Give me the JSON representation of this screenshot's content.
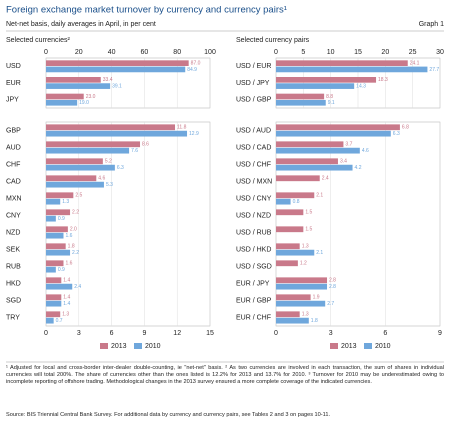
{
  "header": {
    "title": "Foreign exchange market turnover by currency and currency pairs¹",
    "subtitle": "Net-net basis, daily averages in April, in per cent",
    "graph_label": "Graph 1"
  },
  "chart_data": [
    {
      "type": "bar",
      "orientation": "horizontal",
      "title": "Selected currencies²",
      "xaxis": "top",
      "grid": true,
      "categories": [
        "USD",
        "EUR",
        "JPY"
      ],
      "series": [
        {
          "color": "#c9798a",
          "values": [
            87.0,
            33.4,
            23.0
          ],
          "value_labels": [
            "87.0",
            "33.4",
            "23.0"
          ]
        },
        {
          "color": "#6fa7dc",
          "values": [
            84.9,
            39.1,
            19.0
          ],
          "value_labels": [
            "84.9",
            "39.1",
            "19.0"
          ]
        }
      ],
      "xlim": [
        0,
        100
      ],
      "xticks": [
        0,
        20,
        40,
        60,
        80,
        100
      ]
    },
    {
      "type": "bar",
      "orientation": "horizontal",
      "xaxis": "bottom",
      "grid": true,
      "categories": [
        "GBP",
        "AUD",
        "CHF",
        "CAD",
        "MXN",
        "CNY",
        "NZD",
        "SEK",
        "RUB",
        "HKD",
        "SGD",
        "TRY"
      ],
      "series": [
        {
          "name": "2013",
          "color": "#c9798a",
          "values": [
            11.8,
            8.6,
            5.2,
            4.6,
            2.5,
            2.2,
            2.0,
            1.8,
            1.6,
            1.4,
            1.4,
            1.3
          ],
          "value_labels": [
            "11.8",
            "8.6",
            "5.2",
            "4.6",
            "2.5",
            "2.2",
            "2.0",
            "1.8",
            "1.6",
            "1.4",
            "1.4",
            "1.3"
          ]
        },
        {
          "name": "2010",
          "color": "#6fa7dc",
          "values": [
            12.9,
            7.6,
            6.3,
            5.3,
            1.3,
            0.9,
            1.6,
            2.2,
            0.9,
            2.4,
            1.4,
            0.7
          ],
          "value_labels": [
            "12.9",
            "7.6",
            "6.3",
            "5.3",
            "1.3",
            "0.9",
            "1.6",
            "2.2",
            "0.9",
            "2.4",
            "1.4",
            "0.7"
          ]
        }
      ],
      "xlim": [
        0,
        15
      ],
      "xticks": [
        0,
        3,
        6,
        9,
        12,
        15
      ]
    },
    {
      "type": "bar",
      "orientation": "horizontal",
      "title": "Selected currency pairs",
      "xaxis": "top",
      "grid": true,
      "categories": [
        "USD / EUR",
        "USD / JPY",
        "USD / GBP"
      ],
      "series": [
        {
          "color": "#c9798a",
          "values": [
            24.1,
            18.3,
            8.8
          ],
          "value_labels": [
            "24.1",
            "18.3",
            "8.8"
          ]
        },
        {
          "color": "#6fa7dc",
          "values": [
            27.7,
            14.3,
            9.1
          ],
          "value_labels": [
            "27.7",
            "14.3",
            "9.1"
          ]
        }
      ],
      "xlim": [
        0,
        30
      ],
      "xticks": [
        0,
        5,
        10,
        15,
        20,
        25,
        30
      ]
    },
    {
      "type": "bar",
      "orientation": "horizontal",
      "xaxis": "bottom",
      "grid": true,
      "categories": [
        "USD / AUD",
        "USD / CAD",
        "USD / CHF",
        "USD / MXN",
        "USD / CNY",
        "USD / NZD",
        "USD / RUB",
        "USD / HKD",
        "USD / SGD",
        "EUR / JPY",
        "EUR / GBP",
        "EUR / CHF"
      ],
      "series": [
        {
          "name": "2013",
          "color": "#c9798a",
          "values": [
            6.8,
            3.7,
            3.4,
            2.4,
            2.1,
            1.5,
            1.5,
            1.3,
            1.2,
            2.8,
            1.9,
            1.3
          ],
          "value_labels": [
            "6.8",
            "3.7",
            "3.4",
            "2.4",
            "2.1",
            "1.5",
            "1.5",
            "1.3",
            "1.2",
            "2.8",
            "1.9",
            "1.3"
          ]
        },
        {
          "name": "2010",
          "color": "#6fa7dc",
          "values": [
            6.3,
            4.6,
            4.2,
            null,
            0.8,
            null,
            null,
            2.1,
            null,
            2.8,
            2.7,
            1.8
          ],
          "value_labels": [
            "6.3",
            "4.6",
            "4.2",
            null,
            "0.8",
            null,
            null,
            "2.1",
            null,
            "2.8",
            "2.7",
            "1.8"
          ]
        }
      ],
      "xlim": [
        0,
        9
      ],
      "xticks": [
        0,
        3,
        6,
        9
      ]
    }
  ],
  "notes": {
    "footnotes": "¹ Adjusted for local and cross-border inter-dealer double-counting, ie \"net-net\" basis.  ² As two currencies are involved in each transaction, the sum of shares in individual currencies will total 200%. The share of currencies other than the ones listed is 12.2% for 2013 and 13.7% for 2010.  ³ Turnover for 2010 may be underestimated owing to incomplete reporting of offshore trading. Methodological changes in the 2013 survey ensured a more complete coverage of the indicated currencies.",
    "source": "Source: BIS Triennial Central Bank Survey. For additional data by currency and currency pairs, see Tables 2 and 3 on pages 10-11."
  }
}
